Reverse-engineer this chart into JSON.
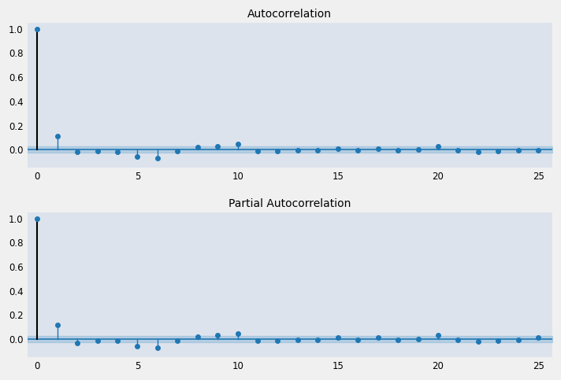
{
  "title_acf": "Autocorrelation",
  "title_pacf": "Partial Autocorrelation",
  "acf_values": [
    1.0,
    0.115,
    -0.02,
    -0.01,
    -0.015,
    -0.06,
    -0.07,
    -0.01,
    0.02,
    0.03,
    0.05,
    -0.01,
    -0.01,
    -0.005,
    -0.005,
    0.01,
    -0.005,
    0.01,
    -0.005,
    0.0,
    0.03,
    -0.005,
    -0.02,
    -0.01,
    -0.005,
    -0.005
  ],
  "pacf_values": [
    1.0,
    0.115,
    -0.03,
    -0.01,
    -0.015,
    -0.06,
    -0.07,
    -0.01,
    0.02,
    0.035,
    0.045,
    -0.01,
    -0.01,
    -0.005,
    -0.005,
    0.01,
    -0.005,
    0.01,
    -0.005,
    0.0,
    0.03,
    -0.005,
    -0.02,
    -0.01,
    -0.005,
    0.01
  ],
  "n_lags": 25,
  "conf_int": 0.025,
  "plot_bg_color": "#dde3ec",
  "fig_bg_color": "#f0f0f0",
  "conf_color": "#7aafd4",
  "stem_color_zero": "black",
  "stem_color_other": "#1f77b4",
  "marker_color": "#1f77b4",
  "zero_line_color": "#1f77b4",
  "title_fontsize": 10,
  "tick_fontsize": 8.5
}
